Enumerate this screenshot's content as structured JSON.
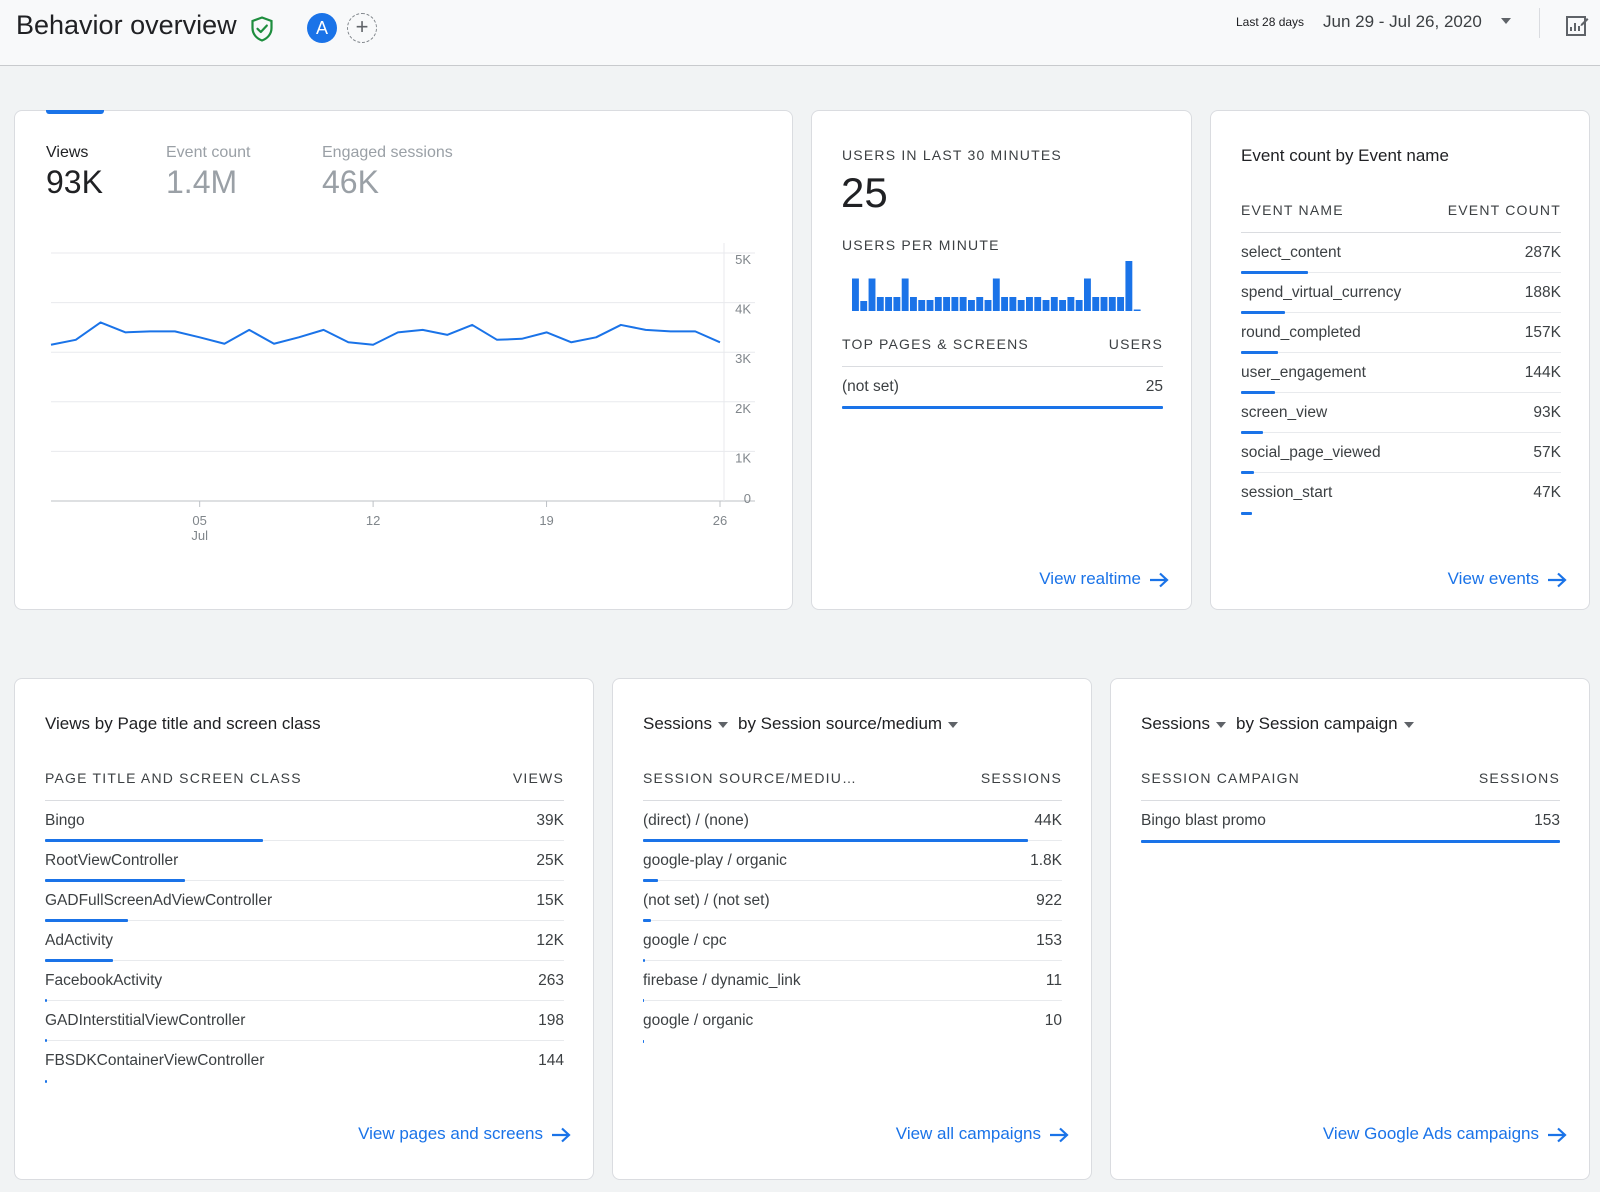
{
  "header": {
    "title": "Behavior overview",
    "avatar_letter": "A",
    "date_label": "Last 28 days",
    "date_range": "Jun 29 - Jul 26, 2020"
  },
  "colors": {
    "accent": "#1a73e8",
    "verified": "#1e8e3e"
  },
  "overview": {
    "metrics": [
      {
        "label": "Views",
        "value": "93K"
      },
      {
        "label": "Event count",
        "value": "1.4M"
      },
      {
        "label": "Engaged sessions",
        "value": "46K"
      }
    ]
  },
  "chart_data": [
    {
      "type": "line",
      "x": [
        "Jun 29",
        "Jun 30",
        "Jul 1",
        "Jul 2",
        "Jul 3",
        "Jul 4",
        "Jul 5",
        "Jul 6",
        "Jul 7",
        "Jul 8",
        "Jul 9",
        "Jul 10",
        "Jul 11",
        "Jul 12",
        "Jul 13",
        "Jul 14",
        "Jul 15",
        "Jul 16",
        "Jul 17",
        "Jul 18",
        "Jul 19",
        "Jul 20",
        "Jul 21",
        "Jul 22",
        "Jul 23",
        "Jul 24",
        "Jul 25",
        "Jul 26"
      ],
      "series": [
        {
          "values": [
            3150,
            3250,
            3600,
            3400,
            3420,
            3420,
            3300,
            3170,
            3450,
            3170,
            3300,
            3450,
            3200,
            3150,
            3400,
            3450,
            3350,
            3550,
            3250,
            3270,
            3400,
            3200,
            3300,
            3550,
            3450,
            3420,
            3420,
            3200
          ]
        }
      ],
      "xticks": [
        {
          "x": "Jul 5",
          "label": "05",
          "sublabel": "Jul"
        },
        {
          "x": "Jul 12",
          "label": "12",
          "sublabel": ""
        },
        {
          "x": "Jul 19",
          "label": "19",
          "sublabel": ""
        },
        {
          "x": "Jul 26",
          "label": "26",
          "sublabel": ""
        }
      ],
      "yticks": [
        {
          "v": 5000,
          "label": "5K"
        },
        {
          "v": 4000,
          "label": "4K"
        },
        {
          "v": 3000,
          "label": "3K"
        },
        {
          "v": 2000,
          "label": "2K"
        },
        {
          "v": 1000,
          "label": "1K"
        },
        {
          "v": 0,
          "label": "0"
        }
      ],
      "ylim": [
        0,
        5000
      ],
      "grid": true
    },
    {
      "type": "bar",
      "values": [
        0.65,
        0.2,
        0.65,
        0.28,
        0.28,
        0.28,
        0.65,
        0.28,
        0.22,
        0.22,
        0.28,
        0.28,
        0.28,
        0.28,
        0.22,
        0.28,
        0.22,
        0.65,
        0.28,
        0.28,
        0.22,
        0.28,
        0.28,
        0.22,
        0.28,
        0.22,
        0.28,
        0.22,
        0.65,
        0.28,
        0.28,
        0.28,
        0.28,
        1.0,
        0.03
      ],
      "ylim": [
        0,
        1
      ]
    }
  ],
  "realtime": {
    "title": "USERS IN LAST 30 MINUTES",
    "value": "25",
    "per_minute_label": "USERS PER MINUTE",
    "table": {
      "col1": "TOP PAGES & SCREENS",
      "col2": "USERS",
      "rows": [
        {
          "name": "(not set)",
          "value": "25",
          "frac": 1.0
        }
      ]
    },
    "link": "View realtime"
  },
  "events": {
    "title": "Event count by Event name",
    "col1": "EVENT NAME",
    "col2": "EVENT COUNT",
    "rows": [
      {
        "name": "select_content",
        "value": "287K",
        "frac": 1.0
      },
      {
        "name": "spend_virtual_currency",
        "value": "188K",
        "frac": 0.65
      },
      {
        "name": "round_completed",
        "value": "157K",
        "frac": 0.55
      },
      {
        "name": "user_engagement",
        "value": "144K",
        "frac": 0.5
      },
      {
        "name": "screen_view",
        "value": "93K",
        "frac": 0.32
      },
      {
        "name": "social_page_viewed",
        "value": "57K",
        "frac": 0.2
      },
      {
        "name": "session_start",
        "value": "47K",
        "frac": 0.16
      }
    ],
    "link": "View events"
  },
  "pages": {
    "title": "Views by Page title and screen class",
    "col1": "PAGE TITLE AND SCREEN CLASS",
    "col2": "VIEWS",
    "rows": [
      {
        "name": "Bingo",
        "value": "39K",
        "frac": 1.0
      },
      {
        "name": "RootViewController",
        "value": "25K",
        "frac": 0.64
      },
      {
        "name": "GADFullScreenAdViewController",
        "value": "15K",
        "frac": 0.38
      },
      {
        "name": "AdActivity",
        "value": "12K",
        "frac": 0.31
      },
      {
        "name": "FacebookActivity",
        "value": "263",
        "frac": 0.01
      },
      {
        "name": "GADInterstitialViewController",
        "value": "198",
        "frac": 0.005
      },
      {
        "name": "FBSDKContainerViewController",
        "value": "144",
        "frac": 0.004
      }
    ],
    "link": "View pages and screens"
  },
  "sources": {
    "metric_label": "Sessions",
    "dim_label": "by Session source/medium",
    "col1": "SESSION SOURCE/MEDIU…",
    "col2": "SESSIONS",
    "rows": [
      {
        "name": "(direct) / (none)",
        "value": "44K",
        "frac": 1.0
      },
      {
        "name": "google-play / organic",
        "value": "1.8K",
        "frac": 0.04
      },
      {
        "name": "(not set) / (not set)",
        "value": "922",
        "frac": 0.02
      },
      {
        "name": "google / cpc",
        "value": "153",
        "frac": 0.004
      },
      {
        "name": "firebase / dynamic_link",
        "value": "11",
        "frac": 0
      },
      {
        "name": "google / organic",
        "value": "10",
        "frac": 0
      }
    ],
    "link": "View all campaigns"
  },
  "campaigns": {
    "metric_label": "Sessions",
    "dim_label": "by Session campaign",
    "col1": "SESSION CAMPAIGN",
    "col2": "SESSIONS",
    "rows": [
      {
        "name": "Bingo blast promo",
        "value": "153",
        "frac": 1.0
      }
    ],
    "link": "View Google Ads campaigns"
  }
}
